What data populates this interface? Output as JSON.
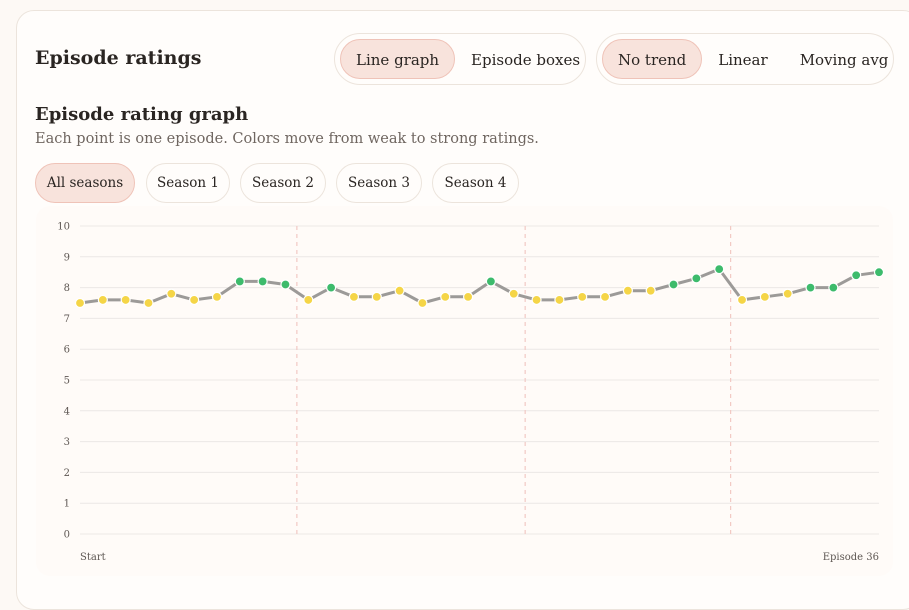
{
  "header": {
    "title": "Episode ratings"
  },
  "view_toggle": {
    "options": [
      "Line graph",
      "Episode boxes"
    ],
    "selected": "Line graph"
  },
  "trend_toggle": {
    "options": [
      "No trend",
      "Linear",
      "Moving avg"
    ],
    "selected": "No trend"
  },
  "section": {
    "title": "Episode rating graph",
    "subtitle": "Each point is one episode. Colors move from weak to strong ratings."
  },
  "season_filter": {
    "options": [
      "All seasons",
      "Season 1",
      "Season 2",
      "Season 3",
      "Season 4"
    ],
    "selected": "All seasons"
  },
  "colors": {
    "line": "#9c9a98",
    "point_mid": "#f5d547",
    "point_high": "#3dbb6c",
    "season_divider": "#f2c9c4",
    "grid": "#ece8e6",
    "accent_bg": "#f8e3dc"
  },
  "chart_data": {
    "type": "line",
    "title": "",
    "xlabel": "",
    "ylabel": "",
    "ylim": [
      0,
      10
    ],
    "yticks": [
      0,
      1,
      2,
      3,
      4,
      5,
      6,
      7,
      8,
      9,
      10
    ],
    "x_start_label": "Start",
    "x_end_label": "Episode 36",
    "season_boundaries_after_episode": [
      10,
      20,
      29
    ],
    "grid": true,
    "series": [
      {
        "values": [
          7.5,
          7.6,
          7.6,
          7.5,
          7.8,
          7.6,
          7.7,
          8.2,
          8.2,
          8.1,
          7.6,
          8.0,
          7.7,
          7.7,
          7.9,
          7.5,
          7.7,
          7.7,
          8.2,
          7.8,
          7.6,
          7.6,
          7.7,
          7.7,
          7.9,
          7.9,
          8.1,
          8.3,
          8.6,
          7.6,
          7.7,
          7.8,
          8.0,
          8.0,
          8.4,
          8.5
        ]
      }
    ],
    "high_threshold": 8.0
  }
}
